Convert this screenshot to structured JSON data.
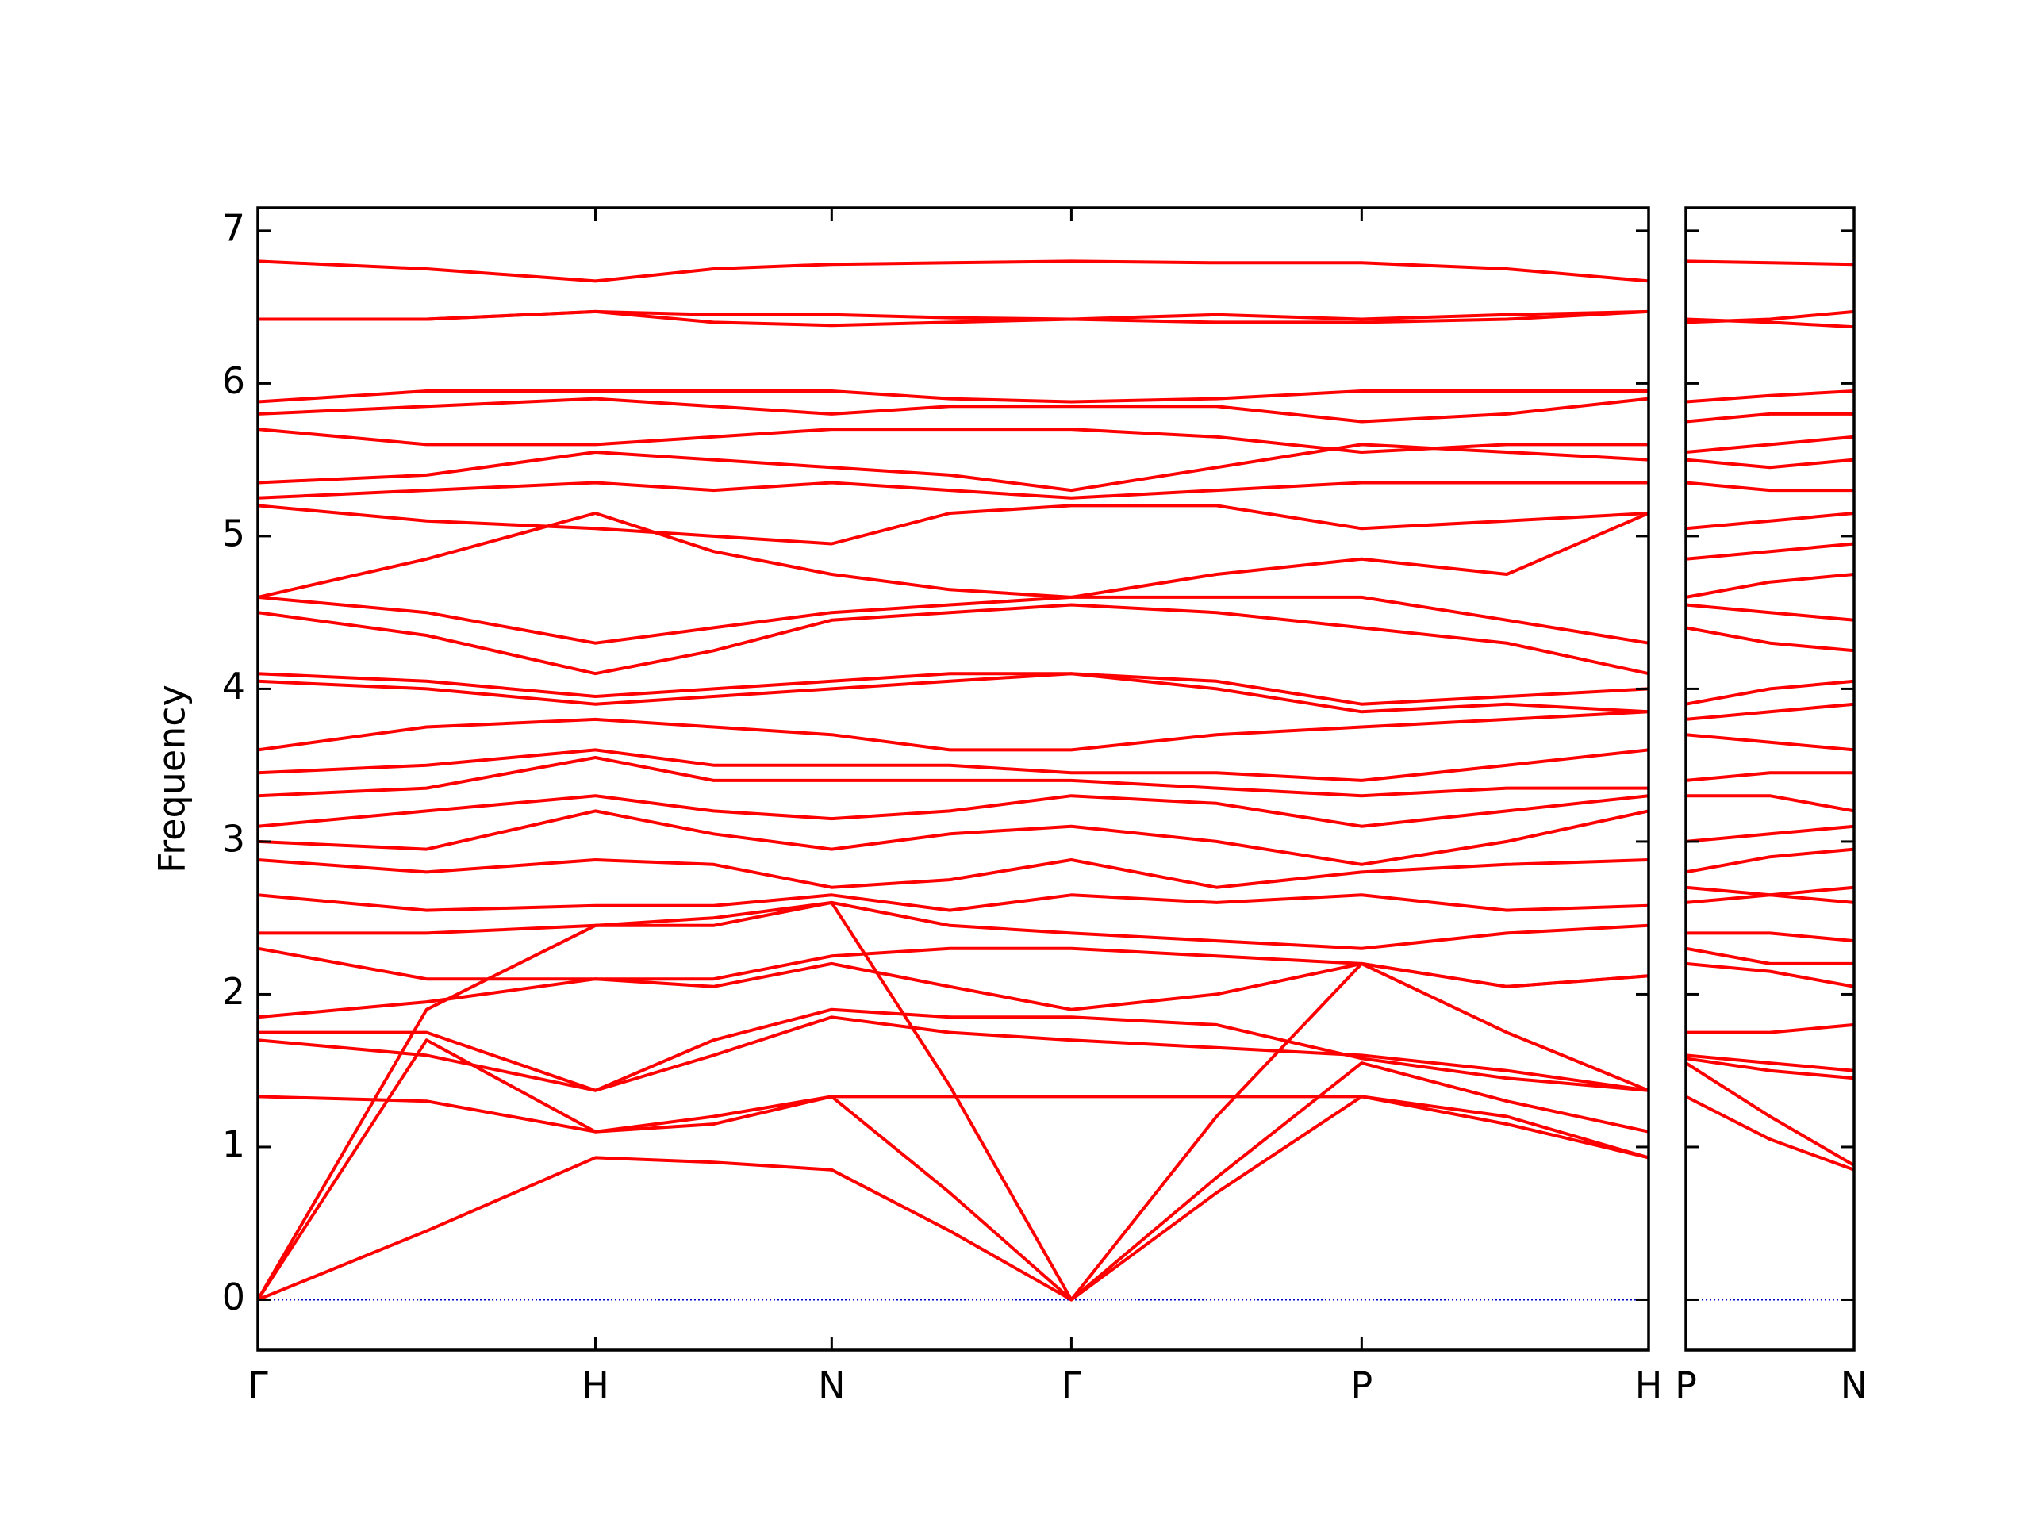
{
  "chart_data": [
    {
      "type": "line",
      "y_label": "Frequency",
      "color": "#ff0000",
      "x": [
        0,
        0.5,
        1,
        1.35,
        1.7,
        2.05,
        2.41,
        2.84,
        3.27,
        3.7,
        4.12
      ],
      "xlim": [
        0,
        4.12
      ],
      "xticks": [
        {
          "value": 0,
          "label": "Γ"
        },
        {
          "value": 1,
          "label": "H"
        },
        {
          "value": 1.7,
          "label": "N"
        },
        {
          "value": 2.41,
          "label": "Γ"
        },
        {
          "value": 3.27,
          "label": "P"
        },
        {
          "value": 4.12,
          "label": "H"
        }
      ],
      "ylim": [
        -0.33,
        7.15
      ],
      "yticks": [
        0,
        1,
        2,
        3,
        4,
        5,
        6,
        7
      ],
      "hline": {
        "value": 0,
        "color": "#0000cc"
      },
      "series": [
        {
          "values": [
            0,
            0.45,
            0.93,
            0.9,
            0.85,
            0.45,
            0,
            0.7,
            1.33,
            1.15,
            0.93
          ]
        },
        {
          "values": [
            0,
            1.7,
            1.1,
            1.15,
            1.33,
            0.7,
            0,
            0.8,
            1.55,
            1.3,
            1.1
          ]
        },
        {
          "values": [
            0,
            1.9,
            2.45,
            2.45,
            2.6,
            1.4,
            0,
            1.2,
            2.2,
            1.75,
            1.37
          ]
        },
        {
          "values": [
            1.33,
            1.3,
            1.1,
            1.2,
            1.33,
            1.33,
            1.33,
            1.33,
            1.33,
            1.2,
            0.93
          ]
        },
        {
          "values": [
            1.7,
            1.6,
            1.37,
            1.6,
            1.85,
            1.75,
            1.7,
            1.65,
            1.6,
            1.5,
            1.37
          ]
        },
        {
          "values": [
            1.75,
            1.75,
            1.37,
            1.7,
            1.9,
            1.85,
            1.85,
            1.8,
            1.58,
            1.45,
            1.37
          ]
        },
        {
          "values": [
            1.85,
            1.95,
            2.1,
            2.05,
            2.2,
            2.05,
            1.9,
            2.0,
            2.2,
            2.05,
            2.12
          ]
        },
        {
          "values": [
            2.3,
            2.1,
            2.1,
            2.1,
            2.25,
            2.3,
            2.3,
            2.25,
            2.2,
            2.05,
            2.12
          ]
        },
        {
          "values": [
            2.4,
            2.4,
            2.45,
            2.5,
            2.6,
            2.45,
            2.4,
            2.35,
            2.3,
            2.4,
            2.45
          ]
        },
        {
          "values": [
            2.65,
            2.55,
            2.58,
            2.58,
            2.65,
            2.55,
            2.65,
            2.6,
            2.65,
            2.55,
            2.58
          ]
        },
        {
          "values": [
            2.88,
            2.8,
            2.88,
            2.85,
            2.7,
            2.75,
            2.88,
            2.7,
            2.8,
            2.85,
            2.88
          ]
        },
        {
          "values": [
            3.0,
            2.95,
            3.2,
            3.05,
            2.95,
            3.05,
            3.1,
            3.0,
            2.85,
            3.0,
            3.2
          ]
        },
        {
          "values": [
            3.1,
            3.2,
            3.3,
            3.2,
            3.15,
            3.2,
            3.3,
            3.25,
            3.1,
            3.2,
            3.3
          ]
        },
        {
          "values": [
            3.3,
            3.35,
            3.55,
            3.4,
            3.4,
            3.4,
            3.4,
            3.35,
            3.3,
            3.35,
            3.35
          ]
        },
        {
          "values": [
            3.45,
            3.5,
            3.6,
            3.5,
            3.5,
            3.5,
            3.45,
            3.45,
            3.4,
            3.5,
            3.6
          ]
        },
        {
          "values": [
            3.6,
            3.75,
            3.8,
            3.75,
            3.7,
            3.6,
            3.6,
            3.7,
            3.75,
            3.8,
            3.85
          ]
        },
        {
          "values": [
            4.05,
            4.0,
            3.9,
            3.95,
            4.0,
            4.05,
            4.1,
            4.0,
            3.85,
            3.9,
            3.85
          ]
        },
        {
          "values": [
            4.1,
            4.05,
            3.95,
            4.0,
            4.05,
            4.1,
            4.1,
            4.05,
            3.9,
            3.95,
            4.0
          ]
        },
        {
          "values": [
            4.5,
            4.35,
            4.1,
            4.25,
            4.45,
            4.5,
            4.55,
            4.5,
            4.4,
            4.3,
            4.1
          ]
        },
        {
          "values": [
            4.6,
            4.5,
            4.3,
            4.4,
            4.5,
            4.55,
            4.6,
            4.6,
            4.6,
            4.45,
            4.3
          ]
        },
        {
          "values": [
            4.6,
            4.85,
            5.15,
            4.9,
            4.75,
            4.65,
            4.6,
            4.75,
            4.85,
            4.75,
            5.15
          ]
        },
        {
          "values": [
            5.2,
            5.1,
            5.05,
            5.0,
            4.95,
            5.15,
            5.2,
            5.2,
            5.05,
            5.1,
            5.15
          ]
        },
        {
          "values": [
            5.25,
            5.3,
            5.35,
            5.3,
            5.35,
            5.3,
            5.25,
            5.3,
            5.35,
            5.35,
            5.35
          ]
        },
        {
          "values": [
            5.35,
            5.4,
            5.55,
            5.5,
            5.45,
            5.4,
            5.3,
            5.45,
            5.6,
            5.55,
            5.5
          ]
        },
        {
          "values": [
            5.7,
            5.6,
            5.6,
            5.65,
            5.7,
            5.7,
            5.7,
            5.65,
            5.55,
            5.6,
            5.6
          ]
        },
        {
          "values": [
            5.8,
            5.85,
            5.9,
            5.85,
            5.8,
            5.85,
            5.85,
            5.85,
            5.75,
            5.8,
            5.9
          ]
        },
        {
          "values": [
            5.88,
            5.95,
            5.95,
            5.95,
            5.95,
            5.9,
            5.88,
            5.9,
            5.95,
            5.95,
            5.95
          ]
        },
        {
          "values": [
            6.42,
            6.42,
            6.47,
            6.45,
            6.45,
            6.43,
            6.42,
            6.45,
            6.42,
            6.45,
            6.47
          ]
        },
        {
          "values": [
            6.42,
            6.42,
            6.47,
            6.4,
            6.38,
            6.4,
            6.42,
            6.4,
            6.4,
            6.42,
            6.47
          ]
        },
        {
          "values": [
            6.8,
            6.75,
            6.67,
            6.75,
            6.78,
            6.79,
            6.8,
            6.79,
            6.79,
            6.75,
            6.67
          ]
        }
      ]
    },
    {
      "type": "line",
      "color": "#ff0000",
      "x": [
        0,
        0.25,
        0.5
      ],
      "xlim": [
        0,
        0.5
      ],
      "xticks": [
        {
          "value": 0,
          "label": "P"
        },
        {
          "value": 0.5,
          "label": "N"
        }
      ],
      "series": [
        {
          "values": [
            1.33,
            1.05,
            0.85
          ]
        },
        {
          "values": [
            1.55,
            1.2,
            0.88
          ]
        },
        {
          "values": [
            1.58,
            1.5,
            1.45
          ]
        },
        {
          "values": [
            1.6,
            1.55,
            1.5
          ]
        },
        {
          "values": [
            1.75,
            1.75,
            1.8
          ]
        },
        {
          "values": [
            2.2,
            2.15,
            2.05
          ]
        },
        {
          "values": [
            2.3,
            2.2,
            2.2
          ]
        },
        {
          "values": [
            2.4,
            2.4,
            2.35
          ]
        },
        {
          "values": [
            2.6,
            2.65,
            2.6
          ]
        },
        {
          "values": [
            2.7,
            2.65,
            2.7
          ]
        },
        {
          "values": [
            2.8,
            2.9,
            2.95
          ]
        },
        {
          "values": [
            3.0,
            3.05,
            3.1
          ]
        },
        {
          "values": [
            3.3,
            3.3,
            3.2
          ]
        },
        {
          "values": [
            3.4,
            3.45,
            3.45
          ]
        },
        {
          "values": [
            3.7,
            3.65,
            3.6
          ]
        },
        {
          "values": [
            3.8,
            3.85,
            3.9
          ]
        },
        {
          "values": [
            3.9,
            4.0,
            4.05
          ]
        },
        {
          "values": [
            4.4,
            4.3,
            4.25
          ]
        },
        {
          "values": [
            4.55,
            4.5,
            4.45
          ]
        },
        {
          "values": [
            4.6,
            4.7,
            4.75
          ]
        },
        {
          "values": [
            4.85,
            4.9,
            4.95
          ]
        },
        {
          "values": [
            5.05,
            5.1,
            5.15
          ]
        },
        {
          "values": [
            5.35,
            5.3,
            5.3
          ]
        },
        {
          "values": [
            5.5,
            5.45,
            5.5
          ]
        },
        {
          "values": [
            5.55,
            5.6,
            5.65
          ]
        },
        {
          "values": [
            5.75,
            5.8,
            5.8
          ]
        },
        {
          "values": [
            5.88,
            5.92,
            5.95
          ]
        },
        {
          "values": [
            6.4,
            6.42,
            6.47
          ]
        },
        {
          "values": [
            6.42,
            6.4,
            6.37
          ]
        },
        {
          "values": [
            6.8,
            6.79,
            6.78
          ]
        }
      ]
    }
  ]
}
